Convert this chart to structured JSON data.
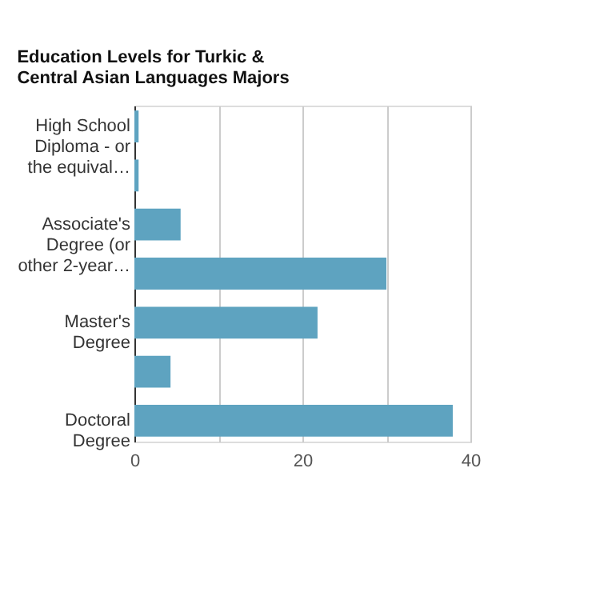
{
  "chart_data": {
    "type": "bar",
    "orientation": "horizontal",
    "title": "Education Levels for Turkic & Central Asian Languages Majors",
    "categories": [
      "High School Diploma - or the equival…",
      null,
      "Associate's Degree (or other 2-year…",
      null,
      "Master's Degree",
      null,
      "Doctoral Degree"
    ],
    "values": [
      0.5,
      0.5,
      5.5,
      30,
      21.8,
      4.3,
      37.9
    ],
    "color": "#5ea3c0",
    "xlim": [
      0,
      40
    ],
    "xticks": [
      0,
      {
        "value": 10,
        "label": null
      },
      20,
      {
        "value": 30,
        "label": null
      },
      40
    ],
    "grid": "x"
  }
}
